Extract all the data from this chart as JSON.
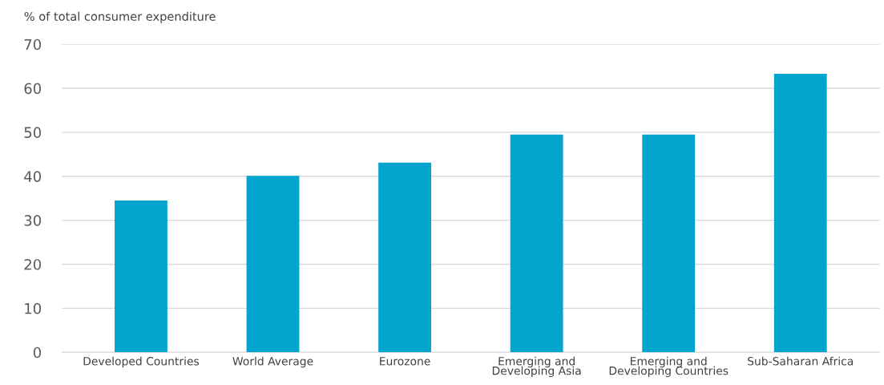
{
  "chart_data": {
    "type": "bar",
    "ylabel": "% of total consumer expenditure",
    "categories": [
      "Developed Countries",
      "World Average",
      "Eurozone",
      "Emerging and\nDeveloping Asia",
      "Emerging and\nDeveloping Countries",
      "Sub-Saharan Africa"
    ],
    "values": [
      34.5,
      40.1,
      43.1,
      49.5,
      49.5,
      63.3
    ],
    "color": "#02a5cd",
    "ylim": [
      0,
      70
    ],
    "yticks": [
      0,
      10,
      20,
      30,
      40,
      50,
      60,
      70
    ],
    "grid": "y",
    "legend": false
  }
}
